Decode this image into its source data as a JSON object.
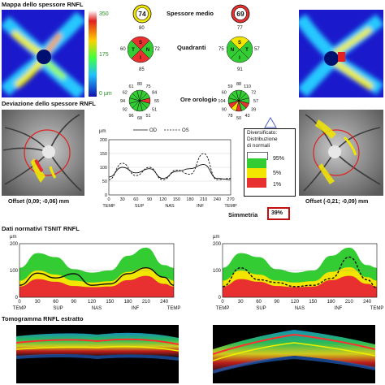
{
  "titles": {
    "rnfl_map": "Mappa dello spessore RNFL",
    "deviation_map": "Deviazione dello spessore RNFL",
    "average_thickness": "Spessore medio",
    "quadrants": "Quadranti",
    "clock_hours": "Ore orologio",
    "tsnit_normative": "Dati normativi TSNIT RNFL",
    "symmetry": "Simmetria",
    "tomogram": "Tomogramma RNFL estratto"
  },
  "colorbar": {
    "max_label": "350",
    "mid_label": "175",
    "min_label": "0 µm"
  },
  "average": {
    "od": "74",
    "os": "69"
  },
  "quadrants": {
    "od": {
      "top": "80",
      "left": "60",
      "right": "72",
      "bottom": "85",
      "letters": {
        "s": "S",
        "t": "T",
        "n": "N",
        "i": "I"
      }
    },
    "os": {
      "top": "77",
      "left": "75",
      "right": "57",
      "bottom": "91",
      "letters": {
        "s": "S",
        "t": "T",
        "n": "N",
        "i": "I"
      }
    }
  },
  "clock": {
    "od": [
      "80",
      "75",
      "84",
      "55",
      "51",
      "51",
      "68",
      "96",
      "92",
      "94",
      "62",
      "61"
    ],
    "os": [
      "88",
      "110",
      "72",
      "57",
      "39",
      "43",
      "50",
      "78",
      "90",
      "104",
      "60",
      "59"
    ]
  },
  "offsets": {
    "od": "Offset (0,09; -0,06) mm",
    "os": "Offset (-0,21; -0,09) mm"
  },
  "symmetry_value": "39%",
  "legend": {
    "title_lines": [
      "Diversificato:",
      "Distribuzione",
      "di normali"
    ],
    "entries": [
      "95%",
      "5%",
      "1%"
    ],
    "colors": [
      "#ffffff",
      "#33cc33",
      "#f2e600",
      "#e83030"
    ]
  },
  "line_legend": {
    "od": "OD",
    "os": "OS"
  },
  "unit": "µm",
  "chart_data": [
    {
      "type": "line",
      "x": [
        0,
        30,
        60,
        90,
        120,
        150,
        180,
        210,
        240,
        270
      ],
      "xticks": [
        "0",
        "30",
        "60",
        "90",
        "120",
        "150",
        "180",
        "210",
        "240",
        "270"
      ],
      "xcats": [
        "TEMP",
        "SUP",
        "NAS",
        "INF",
        "TEMP"
      ],
      "yticks": [
        "0",
        "50",
        "100",
        "150",
        "200"
      ],
      "ylim": [
        0,
        200
      ],
      "ylabel": "µm",
      "series": [
        {
          "name": "OD",
          "style": "solid",
          "values": [
            65,
            100,
            80,
            95,
            60,
            85,
            95,
            110,
            60,
            55
          ]
        },
        {
          "name": "OS",
          "style": "dashed",
          "values": [
            55,
            115,
            70,
            100,
            55,
            90,
            75,
            150,
            55,
            60
          ]
        }
      ]
    },
    {
      "type": "area",
      "x": [
        0,
        30,
        60,
        90,
        120,
        150,
        180,
        210,
        240,
        256
      ],
      "xticks": [
        "0",
        "30",
        "60",
        "90",
        "120",
        "150",
        "180",
        "210",
        "240"
      ],
      "xcats": [
        "TEMP",
        "SUP",
        "NAS",
        "INF",
        "TEMP"
      ],
      "yticks": [
        "0",
        "100",
        "200"
      ],
      "ylim": [
        0,
        200
      ],
      "ylabel": "µm",
      "series": [
        {
          "name": "OD",
          "style": "solid",
          "values": [
            45,
            90,
            72,
            88,
            45,
            50,
            88,
            110,
            75,
            45
          ]
        }
      ]
    },
    {
      "type": "area",
      "x": [
        0,
        30,
        60,
        90,
        120,
        150,
        180,
        210,
        240,
        256
      ],
      "xticks": [
        "0",
        "30",
        "60",
        "90",
        "120",
        "150",
        "180",
        "210",
        "240"
      ],
      "xcats": [
        "TEMP",
        "SUP",
        "NAS",
        "INF",
        "TEMP"
      ],
      "yticks": [
        "0",
        "100",
        "200"
      ],
      "ylim": [
        0,
        200
      ],
      "ylabel": "µm",
      "series": [
        {
          "name": "OS",
          "style": "dashed",
          "values": [
            40,
            110,
            65,
            55,
            40,
            45,
            70,
            150,
            65,
            35
          ]
        }
      ]
    }
  ]
}
